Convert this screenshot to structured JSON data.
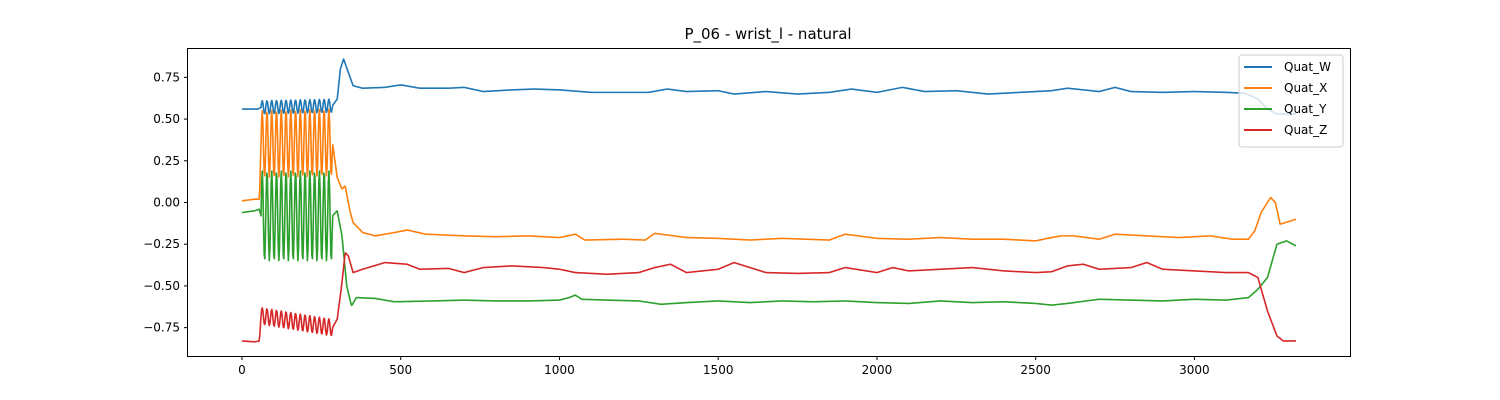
{
  "chart_data": {
    "type": "line",
    "title": "P_06 - wrist_l - natural",
    "xlabel": "",
    "ylabel": "",
    "xlim": [
      -170,
      3490
    ],
    "ylim": [
      -0.92,
      0.92
    ],
    "xticks": [
      0,
      500,
      1000,
      1500,
      2000,
      2500,
      3000
    ],
    "yticks": [
      -0.75,
      -0.5,
      -0.25,
      0.0,
      0.25,
      0.5,
      0.75
    ],
    "ytick_labels": [
      "−0.75",
      "−0.50",
      "−0.25",
      "0.00",
      "0.25",
      "0.50",
      "0.75"
    ],
    "grid": false,
    "legend_position": "top-right",
    "oscillation": {
      "x_start": 60,
      "x_end": 285,
      "cycles": 15
    },
    "series": [
      {
        "name": "Quat_W",
        "color": "#1f77b4",
        "base": [
          [
            0,
            0.56
          ],
          [
            50,
            0.56
          ],
          [
            60,
            0.57
          ],
          [
            285,
            0.58
          ],
          [
            300,
            0.62
          ],
          [
            310,
            0.8
          ],
          [
            320,
            0.86
          ],
          [
            335,
            0.78
          ],
          [
            350,
            0.7
          ],
          [
            380,
            0.685
          ],
          [
            450,
            0.69
          ],
          [
            500,
            0.705
          ],
          [
            560,
            0.685
          ],
          [
            650,
            0.685
          ],
          [
            700,
            0.69
          ],
          [
            760,
            0.665
          ],
          [
            850,
            0.675
          ],
          [
            920,
            0.68
          ],
          [
            1000,
            0.675
          ],
          [
            1100,
            0.66
          ],
          [
            1200,
            0.66
          ],
          [
            1280,
            0.66
          ],
          [
            1340,
            0.68
          ],
          [
            1400,
            0.665
          ],
          [
            1500,
            0.67
          ],
          [
            1550,
            0.65
          ],
          [
            1650,
            0.665
          ],
          [
            1750,
            0.65
          ],
          [
            1850,
            0.66
          ],
          [
            1920,
            0.68
          ],
          [
            2000,
            0.66
          ],
          [
            2080,
            0.69
          ],
          [
            2150,
            0.665
          ],
          [
            2250,
            0.67
          ],
          [
            2350,
            0.65
          ],
          [
            2450,
            0.66
          ],
          [
            2550,
            0.67
          ],
          [
            2600,
            0.685
          ],
          [
            2700,
            0.665
          ],
          [
            2750,
            0.69
          ],
          [
            2800,
            0.665
          ],
          [
            2900,
            0.66
          ],
          [
            3000,
            0.665
          ],
          [
            3100,
            0.66
          ],
          [
            3160,
            0.655
          ],
          [
            3200,
            0.62
          ],
          [
            3230,
            0.56
          ],
          [
            3260,
            0.53
          ],
          [
            3320,
            0.53
          ]
        ],
        "osc_amp": 0.04
      },
      {
        "name": "Quat_X",
        "color": "#ff7f0e",
        "base": [
          [
            0,
            0.01
          ],
          [
            40,
            0.02
          ],
          [
            55,
            0.02
          ],
          [
            60,
            0.35
          ],
          [
            285,
            0.36
          ],
          [
            300,
            0.15
          ],
          [
            315,
            0.08
          ],
          [
            325,
            0.1
          ],
          [
            340,
            -0.05
          ],
          [
            350,
            -0.12
          ],
          [
            380,
            -0.18
          ],
          [
            420,
            -0.2
          ],
          [
            480,
            -0.18
          ],
          [
            520,
            -0.165
          ],
          [
            580,
            -0.19
          ],
          [
            700,
            -0.2
          ],
          [
            800,
            -0.205
          ],
          [
            900,
            -0.2
          ],
          [
            1000,
            -0.21
          ],
          [
            1050,
            -0.19
          ],
          [
            1080,
            -0.225
          ],
          [
            1200,
            -0.22
          ],
          [
            1270,
            -0.225
          ],
          [
            1300,
            -0.185
          ],
          [
            1400,
            -0.21
          ],
          [
            1500,
            -0.215
          ],
          [
            1600,
            -0.225
          ],
          [
            1700,
            -0.215
          ],
          [
            1850,
            -0.225
          ],
          [
            1900,
            -0.19
          ],
          [
            2000,
            -0.215
          ],
          [
            2100,
            -0.22
          ],
          [
            2200,
            -0.21
          ],
          [
            2300,
            -0.22
          ],
          [
            2400,
            -0.22
          ],
          [
            2500,
            -0.23
          ],
          [
            2550,
            -0.21
          ],
          [
            2580,
            -0.2
          ],
          [
            2620,
            -0.2
          ],
          [
            2700,
            -0.22
          ],
          [
            2750,
            -0.19
          ],
          [
            2850,
            -0.2
          ],
          [
            2950,
            -0.21
          ],
          [
            3050,
            -0.2
          ],
          [
            3120,
            -0.22
          ],
          [
            3170,
            -0.22
          ],
          [
            3190,
            -0.17
          ],
          [
            3210,
            -0.06
          ],
          [
            3240,
            0.03
          ],
          [
            3255,
            0.0
          ],
          [
            3270,
            -0.13
          ],
          [
            3320,
            -0.1
          ]
        ],
        "osc_amp": 0.2
      },
      {
        "name": "Quat_Y",
        "color": "#2ca02c",
        "base": [
          [
            0,
            -0.06
          ],
          [
            40,
            -0.05
          ],
          [
            55,
            -0.04
          ],
          [
            60,
            -0.08
          ],
          [
            285,
            -0.08
          ],
          [
            300,
            -0.05
          ],
          [
            315,
            -0.2
          ],
          [
            330,
            -0.5
          ],
          [
            345,
            -0.62
          ],
          [
            360,
            -0.57
          ],
          [
            420,
            -0.575
          ],
          [
            480,
            -0.595
          ],
          [
            600,
            -0.59
          ],
          [
            700,
            -0.585
          ],
          [
            800,
            -0.59
          ],
          [
            900,
            -0.59
          ],
          [
            1000,
            -0.585
          ],
          [
            1030,
            -0.57
          ],
          [
            1050,
            -0.555
          ],
          [
            1070,
            -0.58
          ],
          [
            1150,
            -0.585
          ],
          [
            1250,
            -0.59
          ],
          [
            1320,
            -0.61
          ],
          [
            1400,
            -0.6
          ],
          [
            1500,
            -0.59
          ],
          [
            1600,
            -0.6
          ],
          [
            1700,
            -0.59
          ],
          [
            1800,
            -0.595
          ],
          [
            1900,
            -0.59
          ],
          [
            2000,
            -0.6
          ],
          [
            2100,
            -0.605
          ],
          [
            2200,
            -0.59
          ],
          [
            2300,
            -0.6
          ],
          [
            2400,
            -0.595
          ],
          [
            2500,
            -0.605
          ],
          [
            2550,
            -0.615
          ],
          [
            2600,
            -0.605
          ],
          [
            2700,
            -0.58
          ],
          [
            2800,
            -0.585
          ],
          [
            2900,
            -0.59
          ],
          [
            3000,
            -0.58
          ],
          [
            3100,
            -0.585
          ],
          [
            3170,
            -0.57
          ],
          [
            3200,
            -0.52
          ],
          [
            3230,
            -0.45
          ],
          [
            3260,
            -0.25
          ],
          [
            3290,
            -0.23
          ],
          [
            3320,
            -0.26
          ]
        ],
        "osc_amp": 0.27
      },
      {
        "name": "Quat_Z",
        "color": "#d62728",
        "base": [
          [
            0,
            -0.83
          ],
          [
            40,
            -0.835
          ],
          [
            55,
            -0.83
          ],
          [
            60,
            -0.68
          ],
          [
            285,
            -0.75
          ],
          [
            300,
            -0.7
          ],
          [
            315,
            -0.48
          ],
          [
            325,
            -0.3
          ],
          [
            335,
            -0.32
          ],
          [
            350,
            -0.42
          ],
          [
            380,
            -0.4
          ],
          [
            450,
            -0.36
          ],
          [
            520,
            -0.37
          ],
          [
            560,
            -0.4
          ],
          [
            650,
            -0.395
          ],
          [
            700,
            -0.42
          ],
          [
            760,
            -0.39
          ],
          [
            850,
            -0.38
          ],
          [
            950,
            -0.39
          ],
          [
            1000,
            -0.4
          ],
          [
            1050,
            -0.42
          ],
          [
            1150,
            -0.43
          ],
          [
            1250,
            -0.42
          ],
          [
            1300,
            -0.39
          ],
          [
            1350,
            -0.37
          ],
          [
            1400,
            -0.42
          ],
          [
            1500,
            -0.4
          ],
          [
            1550,
            -0.36
          ],
          [
            1650,
            -0.42
          ],
          [
            1750,
            -0.425
          ],
          [
            1850,
            -0.42
          ],
          [
            1900,
            -0.39
          ],
          [
            2000,
            -0.42
          ],
          [
            2050,
            -0.39
          ],
          [
            2100,
            -0.41
          ],
          [
            2200,
            -0.4
          ],
          [
            2300,
            -0.39
          ],
          [
            2400,
            -0.41
          ],
          [
            2500,
            -0.42
          ],
          [
            2550,
            -0.415
          ],
          [
            2600,
            -0.38
          ],
          [
            2650,
            -0.37
          ],
          [
            2700,
            -0.4
          ],
          [
            2800,
            -0.39
          ],
          [
            2850,
            -0.36
          ],
          [
            2900,
            -0.4
          ],
          [
            3000,
            -0.41
          ],
          [
            3100,
            -0.42
          ],
          [
            3170,
            -0.42
          ],
          [
            3200,
            -0.45
          ],
          [
            3230,
            -0.65
          ],
          [
            3260,
            -0.8
          ],
          [
            3280,
            -0.83
          ],
          [
            3320,
            -0.83
          ]
        ],
        "osc_amp": 0.05
      }
    ]
  }
}
